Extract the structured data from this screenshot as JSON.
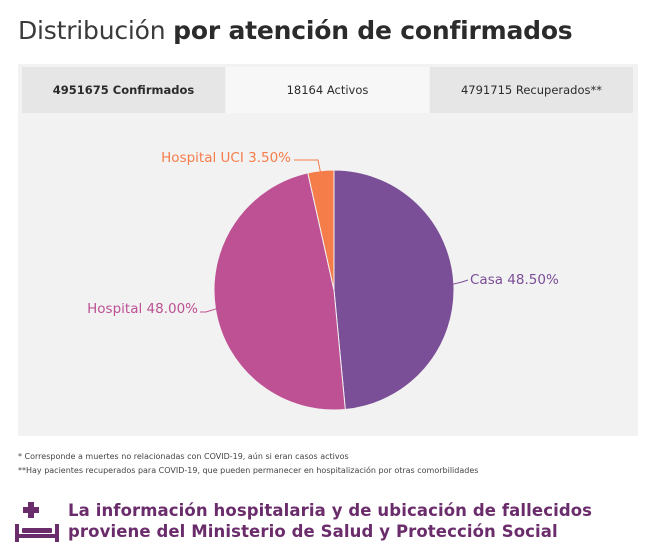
{
  "heading": {
    "light": "Distribución",
    "bold": "por atención de confirmados"
  },
  "tabs": [
    {
      "label": "4951675 Confirmados"
    },
    {
      "label": "18164 Activos"
    },
    {
      "label": "4791715 Recuperados**"
    }
  ],
  "chart_data": {
    "type": "pie",
    "title": "",
    "slices": [
      {
        "label": "Casa 48.50%",
        "category": "Casa",
        "value": 48.5,
        "color": "#7b4e98"
      },
      {
        "label": "Hospital 48.00%",
        "category": "Hospital",
        "value": 48.0,
        "color": "#bd5193"
      },
      {
        "label": "Hospital UCI 3.50%",
        "category": "Hospital UCI",
        "value": 3.5,
        "color": "#f57d4a"
      }
    ]
  },
  "footnotes": {
    "line1": "* Corresponde a muertes no relacionadas con COVID-19, aún si eran casos activos",
    "line2": "**Hay pacientes recuperados para COVID-19, que pueden permanecer en hospitalización por otras comorbilidades"
  },
  "source": {
    "line1": "La información hospitalaria y de ubicación de fallecidos",
    "line2": "proviene del Ministerio de Salud y Protección Social",
    "color": "#6a2c6b"
  }
}
